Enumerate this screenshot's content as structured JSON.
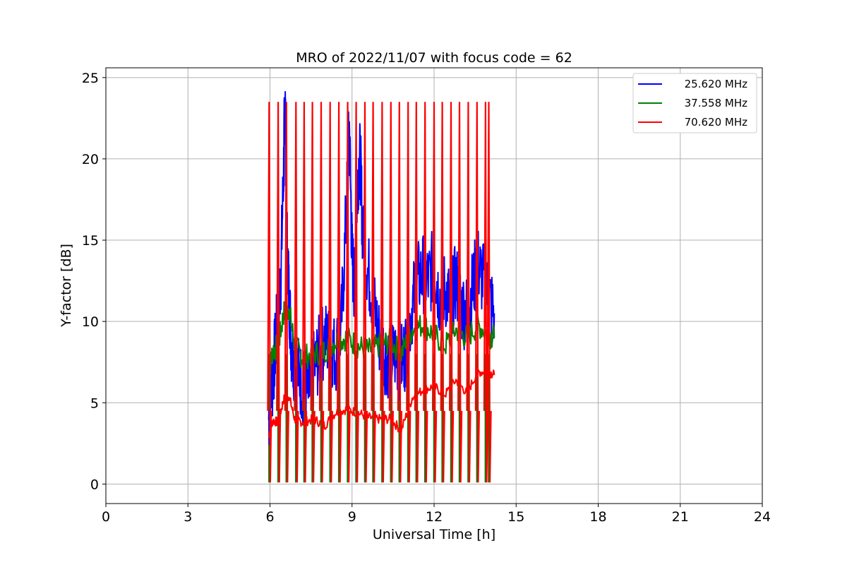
{
  "chart_data": {
    "type": "line",
    "title": "MRO of 2022/11/07 with focus code = 62",
    "xlabel": "Universal Time [h]",
    "ylabel": "Y-factor [dB]",
    "xlim": [
      0,
      24
    ],
    "ylim": [
      -1.2,
      25.6
    ],
    "xticks": [
      0,
      3,
      6,
      9,
      12,
      15,
      18,
      21,
      24
    ],
    "yticks": [
      0,
      5,
      10,
      15,
      20,
      25
    ],
    "grid": true,
    "legend_position": "upper-right",
    "series": [
      {
        "name": "25.620 MHz",
        "color": "#0000ff",
        "x": [
          5.95,
          6.1,
          6.2,
          6.3,
          6.4,
          6.5,
          6.55,
          6.6,
          6.7,
          6.8,
          7.0,
          7.2,
          7.4,
          7.6,
          7.8,
          8.0,
          8.2,
          8.4,
          8.6,
          8.8,
          8.9,
          9.0,
          9.1,
          9.2,
          9.3,
          9.4,
          9.6,
          9.8,
          10.0,
          10.2,
          10.4,
          10.6,
          10.8,
          11.0,
          11.2,
          11.4,
          11.6,
          11.8,
          12.0,
          12.2,
          12.4,
          12.6,
          12.8,
          13.0,
          13.2,
          13.4,
          13.6,
          13.8,
          14.0,
          14.2
        ],
        "y": [
          4.0,
          6.5,
          8.5,
          10.5,
          13.0,
          19.5,
          24.4,
          16.0,
          11.5,
          8.0,
          7.0,
          6.0,
          5.5,
          7.0,
          8.0,
          9.0,
          8.5,
          8.0,
          9.5,
          17.0,
          22.0,
          14.0,
          12.0,
          19.0,
          20.0,
          15.0,
          13.0,
          11.0,
          9.0,
          8.0,
          7.5,
          8.0,
          7.5,
          8.5,
          11.0,
          12.5,
          13.0,
          12.5,
          13.5,
          11.5,
          12.0,
          11.0,
          12.5,
          11.0,
          10.5,
          12.0,
          13.5,
          12.5,
          11.5,
          10.5
        ]
      },
      {
        "name": "37.558 MHz",
        "color": "#008000",
        "x": [
          5.95,
          6.1,
          6.3,
          6.5,
          6.7,
          6.9,
          7.2,
          7.6,
          8.0,
          8.4,
          8.8,
          9.2,
          9.6,
          10.0,
          10.4,
          10.8,
          11.2,
          11.6,
          12.0,
          12.4,
          12.8,
          13.2,
          13.6,
          14.0,
          14.2
        ],
        "y": [
          6.8,
          8.2,
          8.5,
          10.5,
          10.8,
          8.5,
          7.8,
          8.0,
          8.2,
          8.8,
          9.0,
          8.5,
          8.2,
          8.5,
          8.8,
          8.0,
          9.5,
          9.8,
          9.2,
          8.5,
          9.5,
          9.0,
          9.8,
          9.2,
          9.0
        ]
      },
      {
        "name": "70.620 MHz",
        "color": "#ff0000",
        "x": [
          5.95,
          6.1,
          6.3,
          6.5,
          6.7,
          6.9,
          7.2,
          7.6,
          8.0,
          8.4,
          8.8,
          9.2,
          9.6,
          10.0,
          10.4,
          10.8,
          11.2,
          11.6,
          12.0,
          12.4,
          12.8,
          13.2,
          13.6,
          14.0,
          14.2
        ],
        "y": [
          3.0,
          3.9,
          3.8,
          5.2,
          5.4,
          4.0,
          3.8,
          4.0,
          3.6,
          4.4,
          4.6,
          4.4,
          4.1,
          4.0,
          4.0,
          3.3,
          5.3,
          5.8,
          6.0,
          5.5,
          6.4,
          5.6,
          6.9,
          6.9,
          6.7
        ]
      }
    ],
    "red_spikes": {
      "x": [
        5.97,
        6.3,
        6.6,
        6.95,
        7.25,
        7.55,
        7.87,
        8.2,
        8.52,
        8.84,
        9.15,
        9.47,
        9.77,
        10.1,
        10.42,
        10.73,
        11.05,
        11.35,
        11.67,
        12.0,
        12.3,
        12.62,
        12.93,
        13.25,
        13.57,
        13.88,
        14.0
      ],
      "peak": 23.5,
      "trough": 0.1
    },
    "green_spikes": {
      "x": [
        5.97,
        6.3,
        6.6,
        6.95,
        7.25,
        7.55,
        7.87,
        8.2,
        8.52,
        8.84,
        9.15,
        9.47,
        9.77,
        10.1,
        10.42,
        10.73,
        11.05,
        11.35,
        11.67,
        12.0,
        12.3,
        12.62,
        12.93,
        13.25,
        13.57,
        13.88,
        14.0
      ],
      "trough": 0.1
    }
  }
}
